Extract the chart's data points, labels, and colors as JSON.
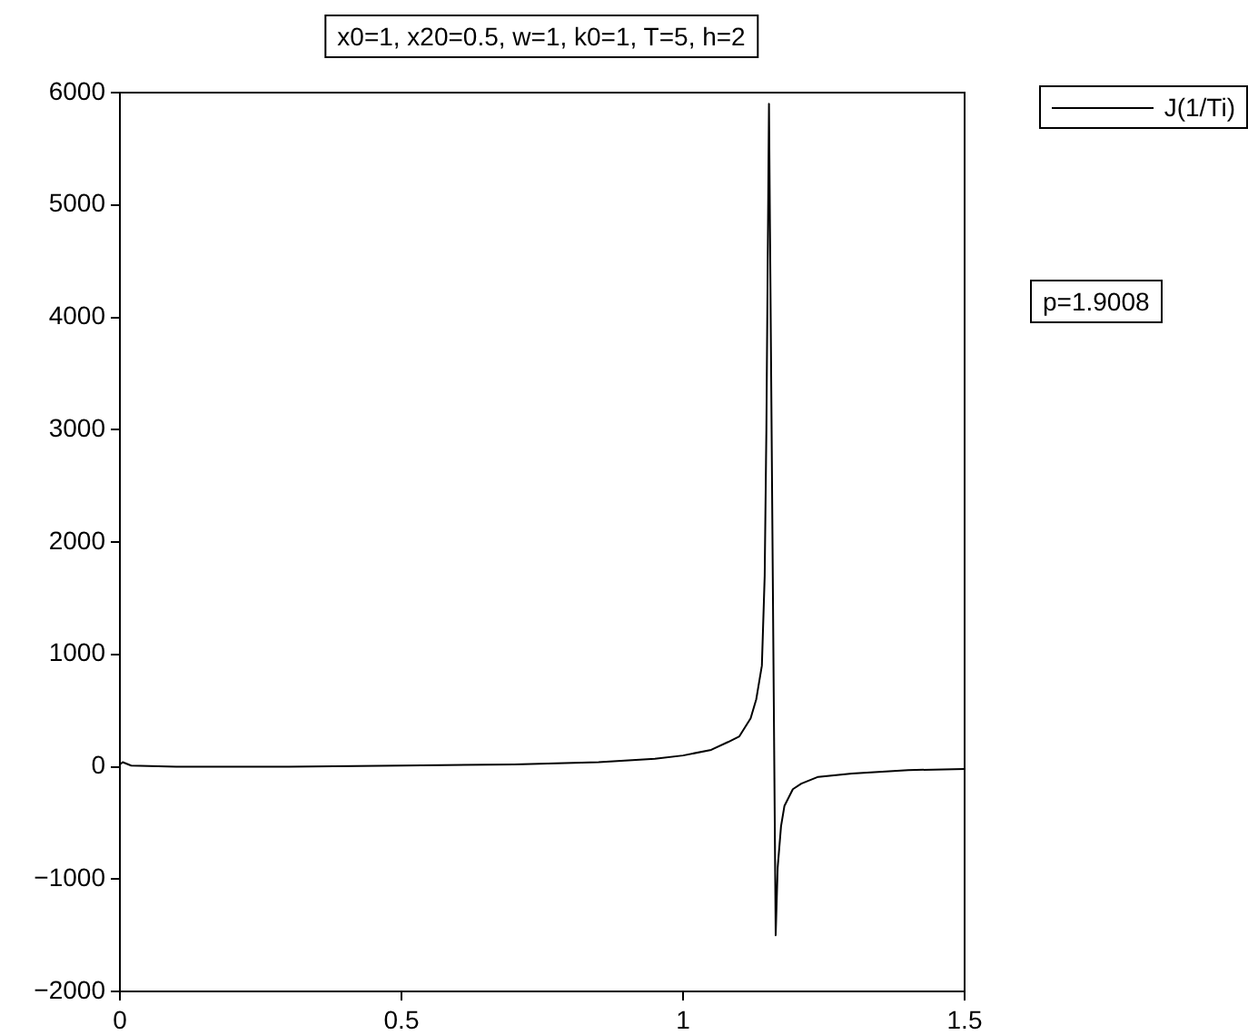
{
  "chart_data": {
    "type": "line",
    "title": "x0=1, x20=0.5, w=1, k0=1, T=5, h=2",
    "x": [
      0,
      0.005,
      0.02,
      0.1,
      0.3,
      0.5,
      0.7,
      0.85,
      0.95,
      1.0,
      1.05,
      1.08,
      1.1,
      1.12,
      1.13,
      1.14,
      1.145,
      1.148,
      1.1526,
      1.1645,
      1.168,
      1.174,
      1.18,
      1.195,
      1.21,
      1.24,
      1.3,
      1.4,
      1.5
    ],
    "series": [
      {
        "name": "J(1/Ti)",
        "color": "#000000",
        "values": [
          20,
          40,
          10,
          0,
          0,
          10,
          20,
          40,
          70,
          100,
          150,
          220,
          270,
          430,
          600,
          900,
          1700,
          3000,
          5900,
          -1500,
          -900,
          -530,
          -350,
          -200,
          -150,
          -90,
          -60,
          -30,
          -20
        ]
      }
    ],
    "xlim": [
      0,
      1.5
    ],
    "xticks": [
      0,
      0.5,
      1,
      1.5
    ],
    "ylim": [
      -2000,
      6000
    ],
    "yticks": [
      {
        "value": -2000,
        "label": "−2000"
      },
      {
        "value": -1000,
        "label": "−1000"
      },
      0,
      1000,
      2000,
      3000,
      4000,
      5000,
      6000
    ],
    "grid": false,
    "legend": "top right",
    "marker": "none",
    "line_style": "solid",
    "annotations": [
      "p=1.9008"
    ]
  }
}
